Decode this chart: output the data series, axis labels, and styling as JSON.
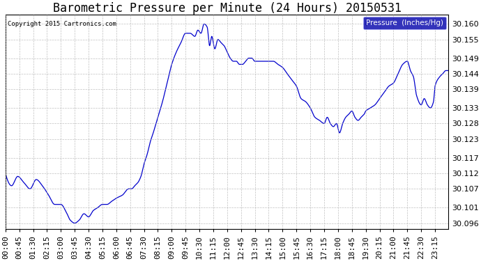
{
  "title": "Barometric Pressure per Minute (24 Hours) 20150531",
  "copyright": "Copyright 2015 Cartronics.com",
  "legend_label": "Pressure  (Inches/Hg)",
  "ylim": [
    30.094,
    30.163
  ],
  "yticks": [
    30.096,
    30.101,
    30.107,
    30.112,
    30.117,
    30.123,
    30.128,
    30.133,
    30.139,
    30.144,
    30.149,
    30.155,
    30.16
  ],
  "xtick_labels": [
    "00:00",
    "00:45",
    "01:30",
    "02:15",
    "03:00",
    "03:45",
    "04:30",
    "05:15",
    "06:00",
    "06:45",
    "07:30",
    "08:15",
    "09:00",
    "09:45",
    "10:30",
    "11:15",
    "12:00",
    "12:45",
    "13:30",
    "14:15",
    "15:00",
    "15:45",
    "16:30",
    "17:15",
    "18:00",
    "18:45",
    "19:30",
    "20:15",
    "21:00",
    "21:45",
    "22:30",
    "23:15"
  ],
  "line_color": "#0000cc",
  "background_color": "#ffffff",
  "grid_color": "#b0b0b0",
  "title_fontsize": 12,
  "tick_fontsize": 8,
  "legend_bg": "#0000aa",
  "legend_fg": "#ffffff"
}
